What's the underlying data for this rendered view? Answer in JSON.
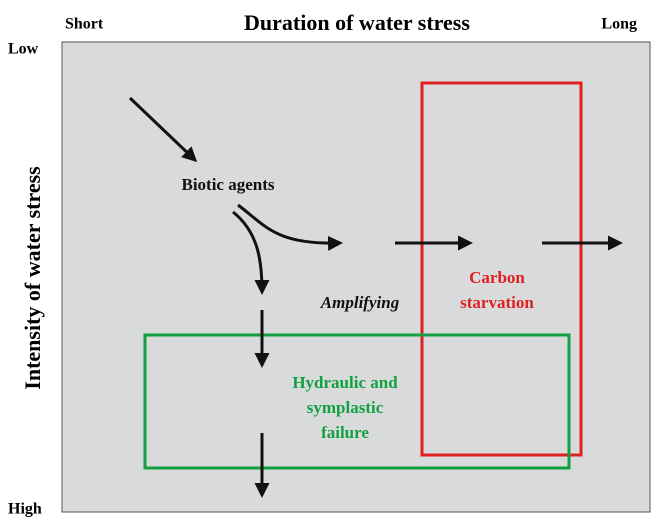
{
  "axes": {
    "x_title": "Duration of water stress",
    "x_start": "Short",
    "x_end": "Long",
    "y_title": "Intensity of water stress",
    "y_start": "Low",
    "y_end": "High"
  },
  "nodes": [
    {
      "label": [
        "Biotic agents"
      ]
    },
    {
      "label": [
        "Amplifying"
      ]
    },
    {
      "label": [
        "Carbon",
        "starvation"
      ]
    },
    {
      "label": [
        "Hydraulic and",
        "symplastic",
        "failure"
      ]
    }
  ]
}
